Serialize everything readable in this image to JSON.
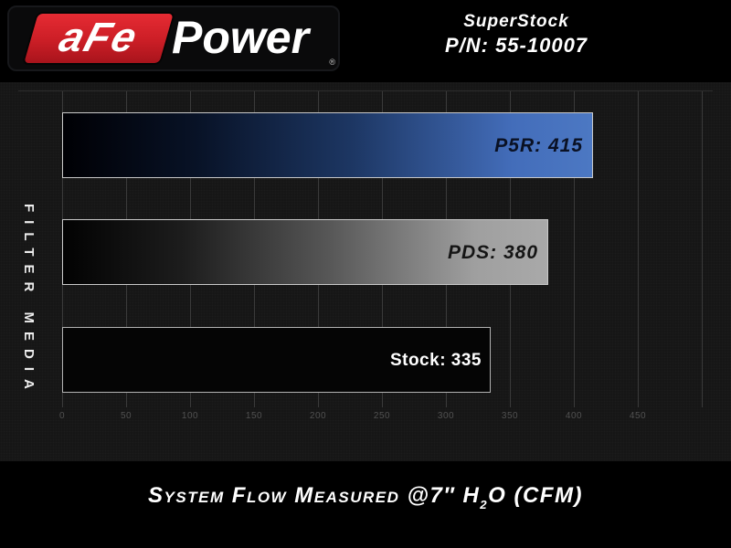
{
  "header": {
    "logo": {
      "brand_a": "aFe",
      "brand_b": "Power",
      "registered": "®"
    },
    "product": {
      "line1": "SuperStock",
      "line2": "P/N: 55-10007"
    }
  },
  "chart": {
    "y_axis_label": "FILTER MEDIA",
    "bars": [
      {
        "name": "P5R",
        "label": "P5R: 415",
        "value": 415
      },
      {
        "name": "PDS",
        "label": "PDS: 380",
        "value": 380
      },
      {
        "name": "Stock",
        "label": "Stock: 335",
        "value": 335
      }
    ],
    "caption": {
      "part1": "System Flow Measured @7″ H",
      "sub": "2",
      "part2": "O (CFM)"
    }
  },
  "chart_data": {
    "type": "bar",
    "orientation": "horizontal",
    "categories": [
      "P5R",
      "PDS",
      "Stock"
    ],
    "values": [
      415,
      380,
      335
    ],
    "data_labels": [
      "P5R: 415",
      "PDS: 380",
      "Stock: 335"
    ],
    "title": "",
    "xlabel": "System Flow Measured @7″ H2O (CFM)",
    "ylabel": "FILTER MEDIA",
    "xlim": [
      0,
      500
    ],
    "x_ticks": [
      0,
      50,
      100,
      150,
      200,
      250,
      300,
      350,
      400,
      450
    ],
    "grid_values": [
      0,
      50,
      100,
      150,
      200,
      250,
      300,
      350,
      400,
      450,
      500
    ],
    "grid": true,
    "legend": false
  },
  "colors": {
    "brand_red": "#d6232b",
    "bar_blue": "#4c78c3",
    "bar_silver": "#a9a9a9",
    "bar_stock_fill": "#050505",
    "bar_border": "#cacaca",
    "chart_background": "#151515",
    "band_background": "#000000",
    "gridline": "#3a3a3a",
    "tick_text": "#515151",
    "text_white": "#ffffff"
  }
}
